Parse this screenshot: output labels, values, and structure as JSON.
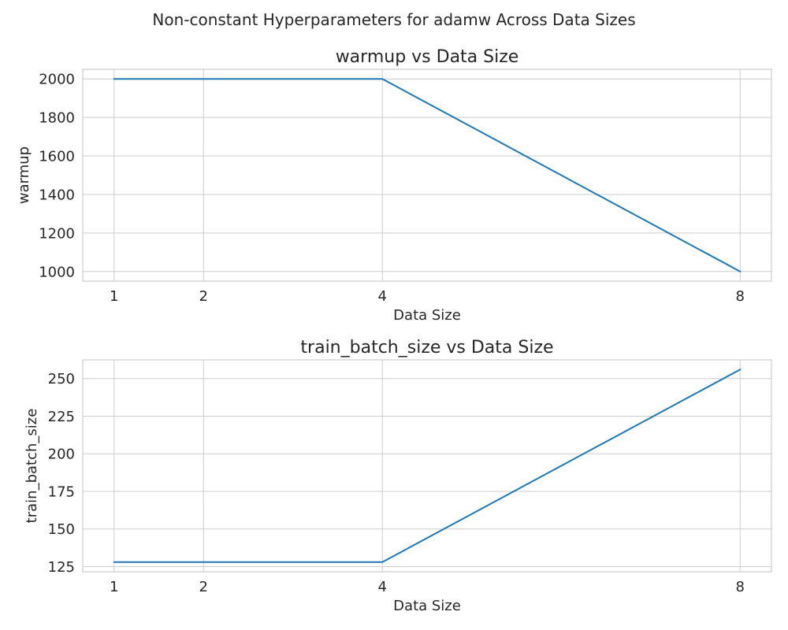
{
  "figure": {
    "title": "Non-constant Hyperparameters for adamw Across Data Sizes"
  },
  "colors": {
    "line": "#1f77b4",
    "grid": "#cccccc",
    "text": "#262626"
  },
  "chart_data": [
    {
      "type": "line",
      "title": "warmup vs Data Size",
      "xlabel": "Data Size",
      "ylabel": "warmup",
      "x": [
        1,
        2,
        4,
        8
      ],
      "xticks": [
        1,
        2,
        4,
        8
      ],
      "yticks": [
        1000,
        1200,
        1400,
        1600,
        1800,
        2000
      ],
      "xlim": [
        0.65,
        8.35
      ],
      "ylim": [
        950,
        2050
      ],
      "grid": true,
      "series": [
        {
          "values": [
            2000,
            2000,
            2000,
            1000
          ]
        }
      ]
    },
    {
      "type": "line",
      "title": "train_batch_size vs Data Size",
      "xlabel": "Data Size",
      "ylabel": "train_batch_size",
      "x": [
        1,
        2,
        4,
        8
      ],
      "xticks": [
        1,
        2,
        4,
        8
      ],
      "yticks": [
        125,
        150,
        175,
        200,
        225,
        250
      ],
      "xlim": [
        0.65,
        8.35
      ],
      "ylim": [
        121.6,
        262.4
      ],
      "grid": true,
      "series": [
        {
          "values": [
            128,
            128,
            128,
            256
          ]
        }
      ]
    }
  ]
}
